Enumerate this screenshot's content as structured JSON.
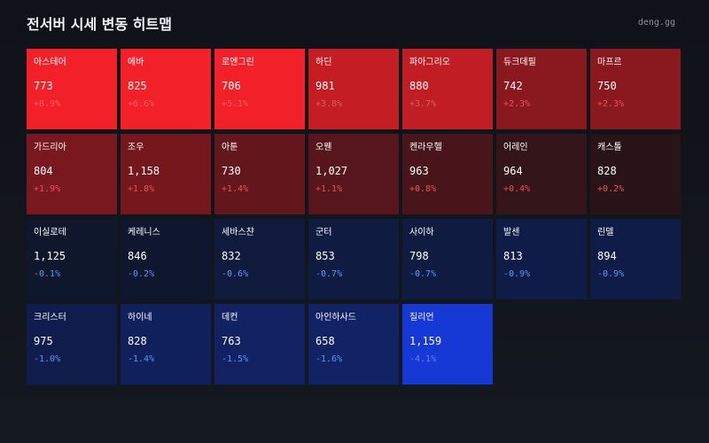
{
  "header": {
    "title": "전서버 시세 변동 히트맵",
    "brand": "deng.gg"
  },
  "chart_data": {
    "type": "heatmap",
    "title": "전서버 시세 변동 히트맵",
    "columns": 7,
    "items": [
      {
        "name": "아스테어",
        "price": "773",
        "change": "+8.9%",
        "pct": 8.9
      },
      {
        "name": "에바",
        "price": "825",
        "change": "+6.6%",
        "pct": 6.6
      },
      {
        "name": "로엔그린",
        "price": "706",
        "change": "+5.1%",
        "pct": 5.1
      },
      {
        "name": "하딘",
        "price": "981",
        "change": "+3.8%",
        "pct": 3.8
      },
      {
        "name": "파아그리오",
        "price": "880",
        "change": "+3.7%",
        "pct": 3.7
      },
      {
        "name": "듀크데필",
        "price": "742",
        "change": "+2.3%",
        "pct": 2.3
      },
      {
        "name": "마프르",
        "price": "750",
        "change": "+2.3%",
        "pct": 2.3
      },
      {
        "name": "가드리아",
        "price": "804",
        "change": "+1.9%",
        "pct": 1.9
      },
      {
        "name": "조우",
        "price": "1,158",
        "change": "+1.8%",
        "pct": 1.8
      },
      {
        "name": "아툰",
        "price": "730",
        "change": "+1.4%",
        "pct": 1.4
      },
      {
        "name": "오웬",
        "price": "1,027",
        "change": "+1.1%",
        "pct": 1.1
      },
      {
        "name": "켄라우헬",
        "price": "963",
        "change": "+0.8%",
        "pct": 0.8
      },
      {
        "name": "어레인",
        "price": "964",
        "change": "+0.4%",
        "pct": 0.4
      },
      {
        "name": "캐스톨",
        "price": "828",
        "change": "+0.2%",
        "pct": 0.2
      },
      {
        "name": "이실로테",
        "price": "1,125",
        "change": "-0.1%",
        "pct": -0.1
      },
      {
        "name": "케레니스",
        "price": "846",
        "change": "-0.2%",
        "pct": -0.2
      },
      {
        "name": "세바스챤",
        "price": "832",
        "change": "-0.6%",
        "pct": -0.6
      },
      {
        "name": "군터",
        "price": "853",
        "change": "-0.7%",
        "pct": -0.7
      },
      {
        "name": "사이하",
        "price": "798",
        "change": "-0.7%",
        "pct": -0.7
      },
      {
        "name": "발센",
        "price": "813",
        "change": "-0.9%",
        "pct": -0.9
      },
      {
        "name": "린델",
        "price": "894",
        "change": "-0.9%",
        "pct": -0.9
      },
      {
        "name": "크리스터",
        "price": "975",
        "change": "-1.0%",
        "pct": -1.0
      },
      {
        "name": "하이네",
        "price": "828",
        "change": "-1.4%",
        "pct": -1.4
      },
      {
        "name": "데컨",
        "price": "763",
        "change": "-1.5%",
        "pct": -1.5
      },
      {
        "name": "아인하사드",
        "price": "658",
        "change": "-1.6%",
        "pct": -1.6
      },
      {
        "name": "질리언",
        "price": "1,159",
        "change": "-4.1%",
        "pct": -4.1
      }
    ]
  }
}
